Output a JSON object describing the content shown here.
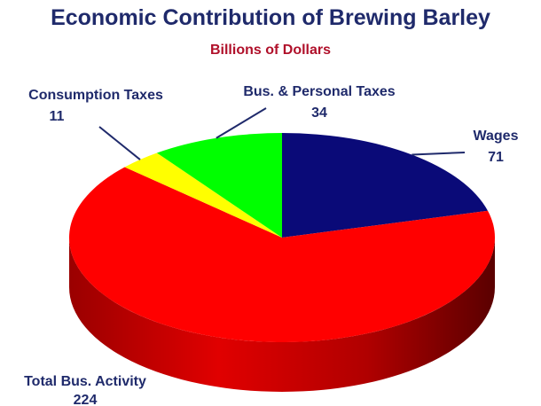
{
  "chart_data": {
    "type": "pie",
    "title": "Economic Contribution of Brewing Barley",
    "subtitle": "Billions of Dollars",
    "slices": [
      {
        "name": "Wages",
        "value": 71,
        "color": "#0a0a78"
      },
      {
        "name": "Total Bus. Activity",
        "value": 224,
        "color": "#ff0000"
      },
      {
        "name": "Consumption Taxes",
        "value": 11,
        "color": "#ffff00"
      },
      {
        "name": "Bus. & Personal Taxes",
        "value": 34,
        "color": "#00ff00"
      }
    ],
    "labels": [
      {
        "name": "Wages",
        "value": "71"
      },
      {
        "name": "Total Bus. Activity",
        "value": "224"
      },
      {
        "name": "Consumption Taxes",
        "value": "11"
      },
      {
        "name": "Bus. & Personal Taxes",
        "value": "34"
      }
    ],
    "three_d": true
  }
}
